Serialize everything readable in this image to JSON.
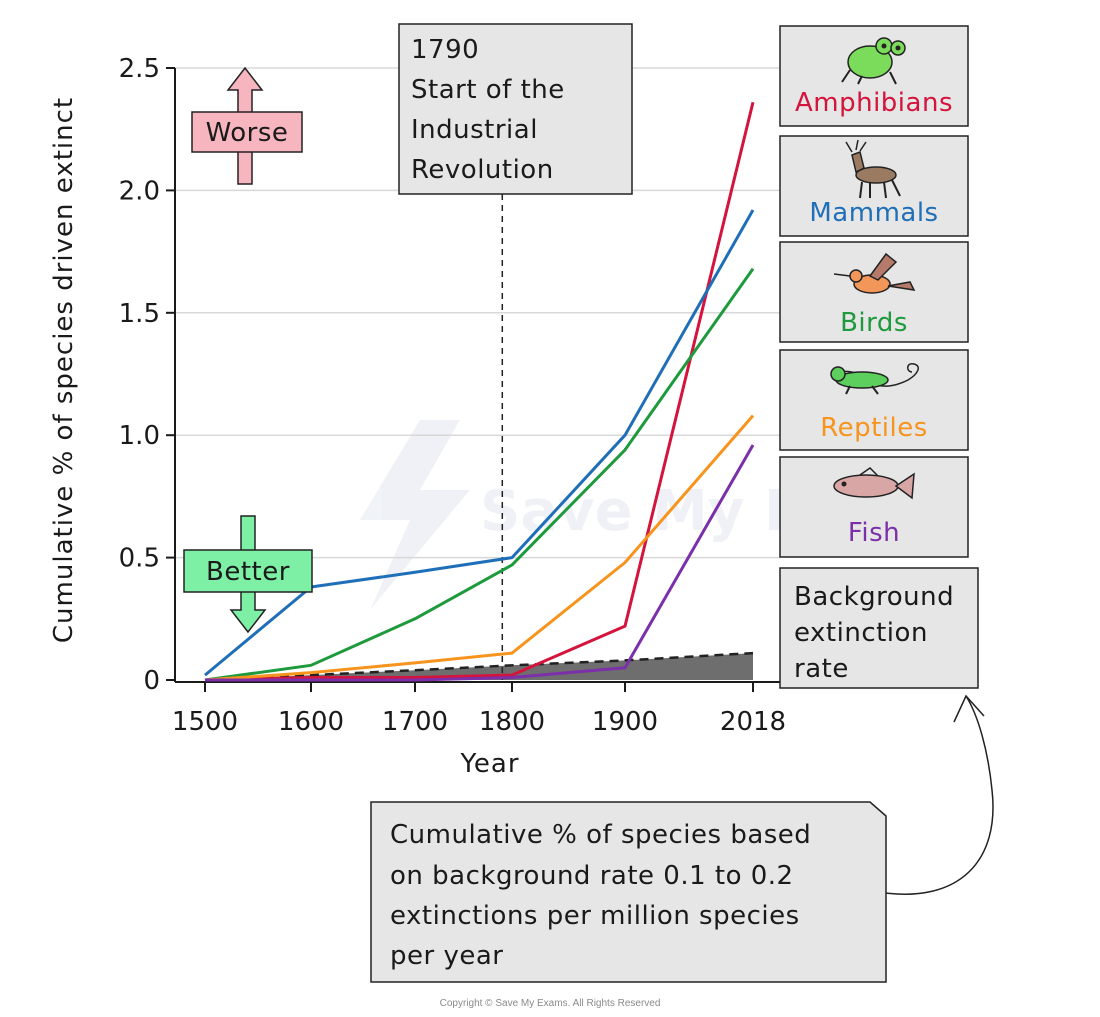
{
  "chart_data": {
    "type": "line",
    "xlabel": "Year",
    "ylabel": "Cumulative % of species driven extinct",
    "x": [
      1500,
      1600,
      1700,
      1800,
      1900,
      2018
    ],
    "x_ticks": [
      "1500",
      "1600",
      "1700",
      "1800",
      "1900",
      "2018"
    ],
    "y_ticks": [
      "0",
      "0.5",
      "1.0",
      "1.5",
      "2.0",
      "2.5"
    ],
    "ylim": [
      0,
      2.5
    ],
    "grid": "horizontal",
    "legend_position": "right",
    "series": [
      {
        "name": "Amphibians",
        "color": "#d4143c",
        "values": [
          0,
          0.01,
          0.01,
          0.02,
          0.22,
          2.36
        ]
      },
      {
        "name": "Mammals",
        "color": "#1f6fb8",
        "values": [
          0.02,
          0.38,
          0.44,
          0.5,
          1.0,
          1.92
        ]
      },
      {
        "name": "Birds",
        "color": "#1e9a3c",
        "values": [
          0,
          0.06,
          0.25,
          0.47,
          0.94,
          1.68
        ]
      },
      {
        "name": "Reptiles",
        "color": "#f7941d",
        "values": [
          0,
          0.03,
          0.07,
          0.11,
          0.48,
          1.08
        ]
      },
      {
        "name": "Fish",
        "color": "#7b2fa8",
        "values": [
          0,
          0,
          0,
          0.01,
          0.05,
          0.96
        ]
      }
    ],
    "background": {
      "name": "Background extinction rate",
      "values": [
        0,
        0.02,
        0.04,
        0.06,
        0.08,
        0.11
      ]
    },
    "event_line": {
      "x": 1790,
      "label_year": "1790",
      "label_lines": [
        "Start of the",
        "Industrial",
        "Revolution"
      ]
    },
    "worse_label": "Worse",
    "better_label": "Better",
    "background_label_lines": [
      "Background",
      "extinction",
      "rate"
    ],
    "note_lines": [
      "Cumulative % of species based",
      "on background rate 0.1 to 0.2",
      "extinctions per million species",
      "per year"
    ]
  },
  "watermark": "Save My Exams",
  "copyright": "Copyright © Save My Exams. All Rights Reserved"
}
